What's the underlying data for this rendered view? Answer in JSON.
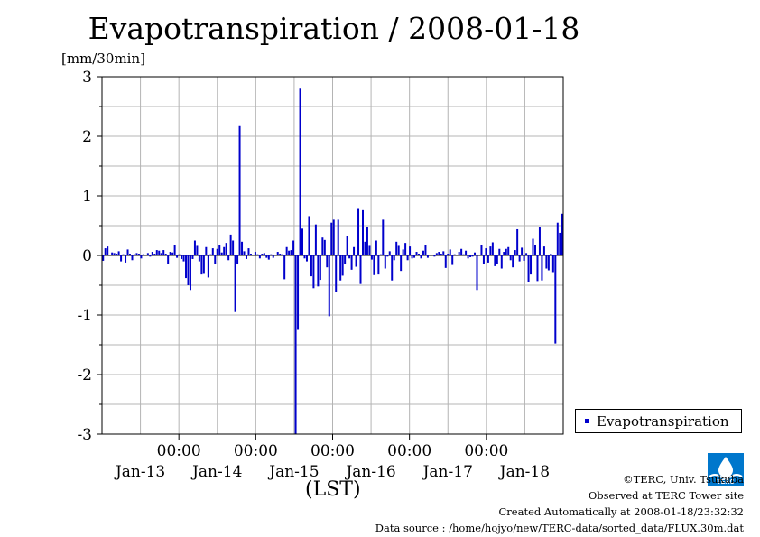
{
  "header": {
    "title": "Evapotranspiration / 2008-01-18",
    "unit": "[mm/30min]"
  },
  "chart_data": {
    "type": "bar",
    "title": "Evapotranspiration / 2008-01-18",
    "ylabel": "[mm/30min]",
    "xlabel": "(LST)",
    "ylim": [
      -3,
      3
    ],
    "yticks": [
      "3",
      "2",
      "1",
      "0",
      "-1",
      "-2",
      "-3"
    ],
    "xtick_times": [
      "00:00",
      "00:00",
      "00:00",
      "00:00",
      "00:00"
    ],
    "xtick_dates": [
      "Jan-13",
      "Jan-14",
      "Jan-15",
      "Jan-16",
      "Jan-17",
      "Jan-18"
    ],
    "grid": true,
    "legend_position": "bottom-right",
    "color": "#0000cc",
    "series": [
      {
        "name": "Evapotranspiration",
        "values": [
          -0.09,
          0.12,
          0.15,
          0.0,
          0.05,
          0.04,
          0.03,
          0.07,
          -0.1,
          0.02,
          -0.12,
          0.1,
          0.03,
          -0.08,
          0.02,
          0.04,
          0.03,
          -0.05,
          0.02,
          0.01,
          0.04,
          -0.02,
          0.06,
          0.03,
          0.09,
          0.08,
          0.04,
          0.09,
          0.03,
          -0.15,
          0.06,
          0.05,
          0.18,
          -0.04,
          0.02,
          -0.06,
          -0.1,
          -0.38,
          -0.5,
          -0.58,
          -0.06,
          0.25,
          0.16,
          -0.1,
          -0.32,
          -0.31,
          0.14,
          -0.37,
          0.02,
          0.12,
          -0.15,
          0.11,
          0.17,
          0.05,
          0.14,
          0.21,
          -0.08,
          0.35,
          0.25,
          -0.95,
          -0.14,
          2.17,
          0.23,
          0.07,
          -0.06,
          0.12,
          0.03,
          0.01,
          0.06,
          0.02,
          -0.05,
          0.03,
          0.04,
          -0.04,
          -0.07,
          0.02,
          -0.04,
          0.01,
          0.06,
          0.03,
          0.02,
          -0.4,
          0.14,
          0.08,
          0.09,
          0.25,
          -3.0,
          -1.25,
          2.8,
          0.45,
          -0.05,
          -0.1,
          0.66,
          -0.35,
          -0.55,
          0.52,
          -0.52,
          -0.41,
          0.3,
          0.26,
          -0.2,
          -1.02,
          0.55,
          0.6,
          -0.62,
          0.6,
          -0.42,
          -0.34,
          -0.14,
          0.33,
          -0.05,
          -0.24,
          0.14,
          -0.19,
          0.78,
          -0.48,
          0.76,
          0.23,
          0.47,
          0.16,
          -0.07,
          -0.33,
          0.25,
          -0.32,
          0.02,
          0.6,
          -0.22,
          -0.02,
          0.07,
          -0.42,
          -0.08,
          0.23,
          0.16,
          -0.26,
          0.1,
          0.21,
          -0.08,
          0.15,
          -0.05,
          -0.04,
          0.06,
          0.03,
          -0.05,
          0.08,
          0.18,
          -0.04,
          0.01,
          0.01,
          -0.02,
          0.04,
          0.06,
          0.03,
          0.07,
          -0.21,
          0.03,
          0.1,
          -0.16,
          0.02,
          0.01,
          0.06,
          0.11,
          0.02,
          0.08,
          -0.05,
          -0.03,
          -0.02,
          0.05,
          -0.58,
          0.01,
          0.18,
          -0.15,
          0.12,
          -0.12,
          0.15,
          0.22,
          -0.18,
          -0.14,
          0.11,
          -0.22,
          0.06,
          0.11,
          0.14,
          -0.08,
          -0.2,
          0.09,
          0.44,
          -0.1,
          0.13,
          -0.09,
          0.04,
          -0.45,
          -0.32,
          0.28,
          0.17,
          -0.43,
          0.48,
          -0.42,
          0.15,
          -0.22,
          -0.25,
          0.03,
          -0.28,
          -1.48,
          0.55,
          0.38,
          0.7
        ]
      }
    ]
  },
  "legend": {
    "label": "Evapotranspiration"
  },
  "credits": {
    "copyright": "©TERC, Univ. Tsukuba",
    "site": "Observed at TERC Tower site",
    "created": "Created Automatically at 2008-01-18/23:32:32",
    "source": "Data source : /home/hojyo/new/TERC-data/sorted_data/FLUX.30m.dat"
  },
  "logo": {
    "name": "terc-logo",
    "text": "TERC",
    "color": "#0077cc"
  }
}
